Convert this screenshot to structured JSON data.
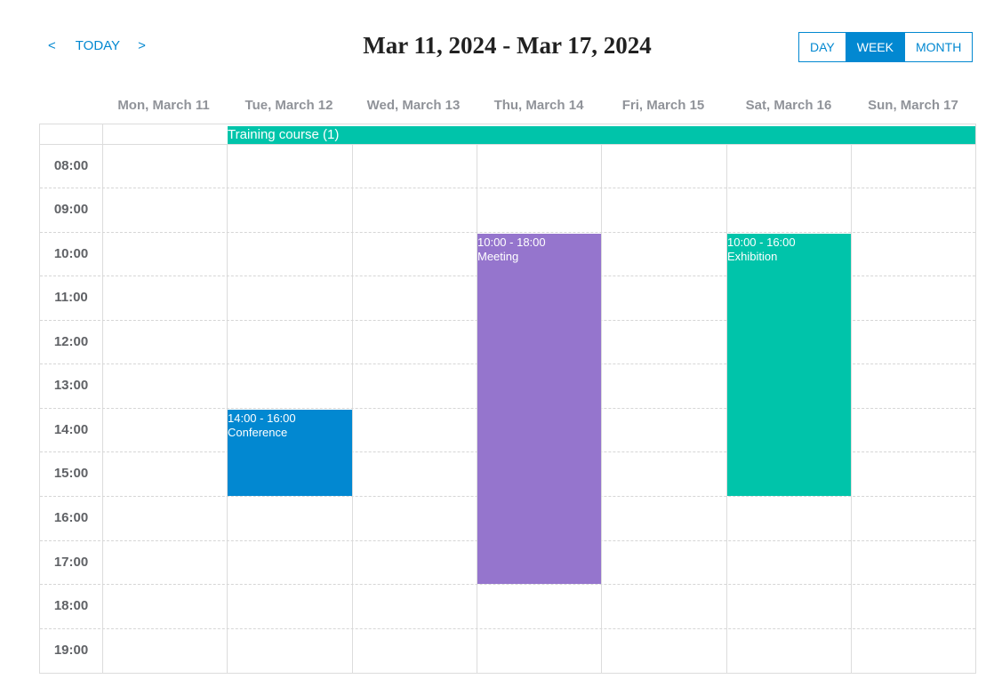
{
  "toolbar": {
    "prev_label": "<",
    "today_label": "TODAY",
    "next_label": ">",
    "range_title": "Mar 11, 2024 - Mar 17, 2024",
    "views": {
      "day": "DAY",
      "week": "WEEK",
      "month": "MONTH"
    },
    "active_view": "WEEK"
  },
  "days": [
    "Mon, March 11",
    "Tue, March 12",
    "Wed, March 13",
    "Thu, March 14",
    "Fri, March 15",
    "Sat, March 16",
    "Sun, March 17"
  ],
  "hours": [
    "08:00",
    "09:00",
    "10:00",
    "11:00",
    "12:00",
    "13:00",
    "14:00",
    "15:00",
    "16:00",
    "17:00",
    "18:00",
    "19:00"
  ],
  "allday_event": {
    "label": "Training course (1)",
    "color": "#00c4aa"
  },
  "events": [
    {
      "time": "14:00 - 16:00",
      "title": "Conference",
      "color": "#0288d1"
    },
    {
      "time": "10:00 - 18:00",
      "title": "Meeting",
      "color": "#9575cd"
    },
    {
      "time": "10:00 - 16:00",
      "title": "Exhibition",
      "color": "#00c4aa"
    }
  ],
  "colors": {
    "accent": "#0288d1",
    "teal": "#00c4aa",
    "purple": "#9575cd"
  }
}
